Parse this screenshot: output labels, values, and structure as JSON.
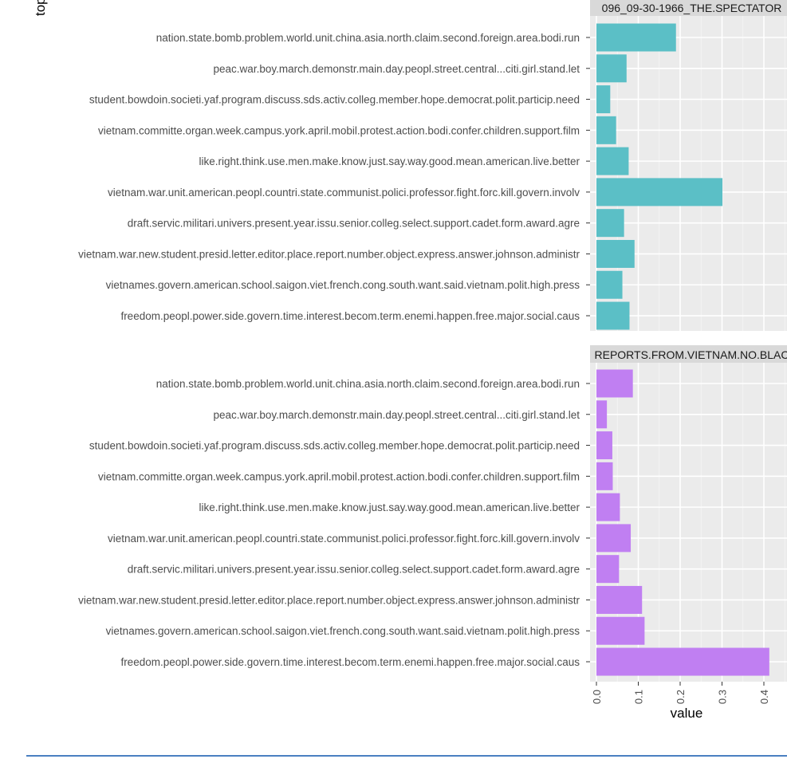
{
  "chart_data": {
    "type": "bar",
    "orientation": "horizontal",
    "xlabel": "value",
    "ylabel": "topic",
    "xlim": [
      -0.003,
      0.445
    ],
    "x_ticks": [
      "0.0",
      "0.1",
      "0.2",
      "0.3",
      "0.4"
    ],
    "x_tick_values": [
      0,
      0.1,
      0.2,
      0.3,
      0.4
    ],
    "categories": [
      "nation.state.bomb.problem.world.unit.china.asia.north.claim.second.foreign.area.bodi.run",
      "peac.war.boy.march.demonstr.main.day.peopl.street.central...citi.girl.stand.let",
      "student.bowdoin.societi.yaf.program.discuss.sds.activ.colleg.member.hope.democrat.polit.particip.need",
      "vietnam.committe.organ.week.campus.york.april.mobil.protest.action.bodi.confer.children.support.film",
      "like.right.think.use.men.make.know.just.say.way.good.mean.american.live.better",
      "vietnam.war.unit.american.peopl.countri.state.communist.polici.professor.fight.forc.kill.govern.involv",
      "draft.servic.militari.univers.present.year.issu.senior.colleg.select.support.cadet.form.award.agre",
      "vietnam.war.new.student.presid.letter.editor.place.report.number.object.express.answer.johnson.administr",
      "vietnames.govern.american.school.saigon.viet.french.cong.south.want.said.vietnam.polit.high.press",
      "freedom.peopl.power.side.govern.time.interest.becom.term.enemi.happen.free.major.social.caus"
    ],
    "panels": [
      {
        "name": "096_09-30-1966_THE.SPECTATOR",
        "color": "#5bbfc6",
        "values": [
          0.19,
          0.072,
          0.033,
          0.047,
          0.077,
          0.301,
          0.066,
          0.091,
          0.062,
          0.079
        ]
      },
      {
        "name": "REPORTS.FROM.VIETNAM.NO.BLAC",
        "color": "#c07ff2",
        "values": [
          0.087,
          0.025,
          0.038,
          0.039,
          0.056,
          0.082,
          0.054,
          0.109,
          0.115,
          0.413
        ]
      }
    ]
  },
  "colors": {
    "panel_background": "#ebebeb",
    "grid_major": "#ffffff",
    "strip_background": "#d9d9d9",
    "bottom_rule": "#4a7fc1"
  }
}
